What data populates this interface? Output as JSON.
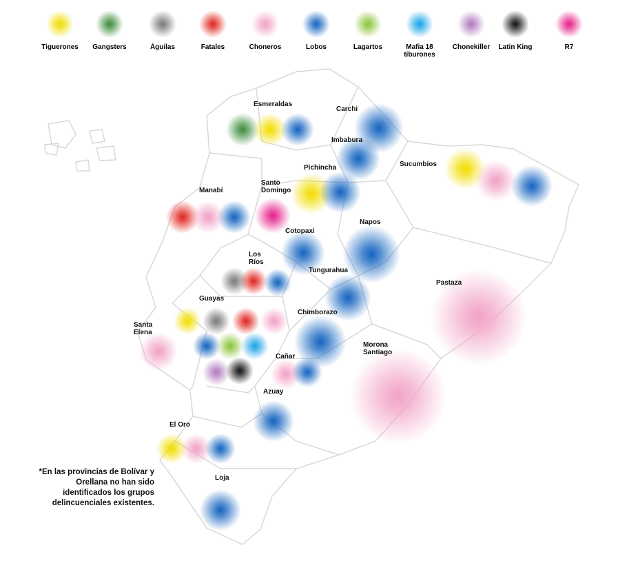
{
  "legend": [
    {
      "name": "Tiguerones",
      "color": "#f2dd00"
    },
    {
      "name": "Gangsters",
      "color": "#3c8c3c"
    },
    {
      "name": "Águilas",
      "color": "#7a7a7a"
    },
    {
      "name": "Fatales",
      "color": "#e0261f"
    },
    {
      "name": "Choneros",
      "color": "#f2a2c6"
    },
    {
      "name": "Lobos",
      "color": "#1464c0"
    },
    {
      "name": "Lagartos",
      "color": "#8cc43c"
    },
    {
      "name": "Mafia 18 tiburones",
      "color": "#1aa3e8"
    },
    {
      "name": "Chonekiller",
      "color": "#b07cc0"
    },
    {
      "name": "Latin King",
      "color": "#111111"
    },
    {
      "name": "R7",
      "color": "#e6208a"
    }
  ],
  "provinces": [
    {
      "name": "Esmeraldas",
      "groups": [
        "Gangsters",
        "Tiguerones",
        "Lobos"
      ]
    },
    {
      "name": "Carchi",
      "groups": [
        "Lobos"
      ]
    },
    {
      "name": "Imbabura",
      "groups": [
        "Lobos"
      ]
    },
    {
      "name": "Pichincha",
      "groups": [
        "Tiguerones",
        "Lobos"
      ]
    },
    {
      "name": "Sucumbíos",
      "groups": [
        "Tiguerones",
        "Choneros",
        "Lobos"
      ]
    },
    {
      "name": "Manabí",
      "groups": [
        "Fatales",
        "Choneros",
        "Lobos"
      ]
    },
    {
      "name": "Santo Domingo",
      "groups": [
        "R7"
      ]
    },
    {
      "name": "Napos",
      "groups": [
        "Lobos"
      ]
    },
    {
      "name": "Cotopaxi",
      "groups": [
        "Lobos"
      ]
    },
    {
      "name": "Los Ríos",
      "groups": [
        "Águilas",
        "Fatales",
        "Lobos"
      ]
    },
    {
      "name": "Tungurahua",
      "groups": [
        "Lobos"
      ]
    },
    {
      "name": "Pastaza",
      "groups": [
        "Choneros"
      ]
    },
    {
      "name": "Guayas",
      "groups": [
        "Tiguerones",
        "Águilas",
        "Fatales",
        "Choneros",
        "Lobos",
        "Lagartos",
        "Mafia 18 tiburones",
        "Chonekiller",
        "Latin King"
      ]
    },
    {
      "name": "Chimborazo",
      "groups": [
        "Lobos"
      ]
    },
    {
      "name": "Santa Elena",
      "groups": [
        "Choneros"
      ]
    },
    {
      "name": "Morona Santiago",
      "groups": [
        "Choneros"
      ]
    },
    {
      "name": "Cañar",
      "groups": [
        "Choneros",
        "Lobos"
      ]
    },
    {
      "name": "Azuay",
      "groups": [
        "Lobos"
      ]
    },
    {
      "name": "El Oro",
      "groups": [
        "Tiguerones",
        "Choneros",
        "Lobos"
      ]
    },
    {
      "name": "Loja",
      "groups": [
        "Lobos"
      ]
    }
  ],
  "footnote": "*En las provincias de Bolívar y Orellana no han sido identificados los grupos delincuenciales existentes."
}
